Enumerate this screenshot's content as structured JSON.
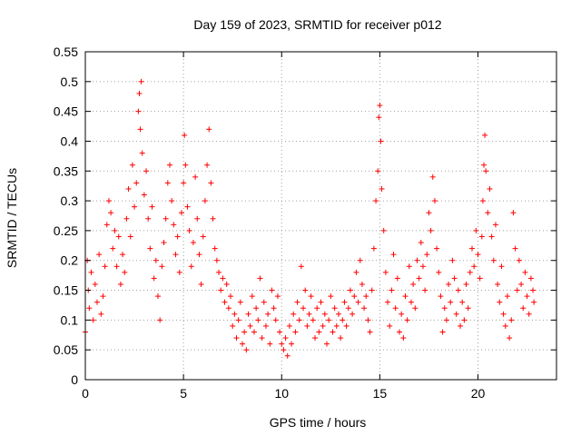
{
  "chart_data": {
    "type": "scatter",
    "title": "Day 159 of 2023, SRMTID for receiver p012",
    "xlabel": "GPS time / hours",
    "ylabel": "SRMTID / TECUs",
    "xlim": [
      0,
      24
    ],
    "ylim": [
      0,
      0.55
    ],
    "xticks": [
      0,
      5,
      10,
      15,
      20
    ],
    "yticks": [
      0,
      0.05,
      0.1,
      0.15,
      0.2,
      0.25,
      0.3,
      0.35,
      0.4,
      0.45,
      0.5,
      0.55
    ],
    "xtick_labels": [
      "0",
      "5",
      "10",
      "15",
      "20"
    ],
    "ytick_labels": [
      "0",
      "0.05",
      "0.1",
      "0.15",
      "0.2",
      "0.25",
      "0.3",
      "0.35",
      "0.4",
      "0.45",
      "0.5",
      "0.55"
    ],
    "grid": true,
    "marker": "+",
    "marker_color": "#ff0000",
    "series": [
      {
        "name": "SRMTID",
        "points": [
          [
            0.0,
            0.08
          ],
          [
            0.1,
            0.2
          ],
          [
            0.15,
            0.15
          ],
          [
            0.2,
            0.12
          ],
          [
            0.3,
            0.18
          ],
          [
            0.4,
            0.1
          ],
          [
            0.5,
            0.16
          ],
          [
            0.6,
            0.13
          ],
          [
            0.7,
            0.21
          ],
          [
            0.8,
            0.11
          ],
          [
            0.9,
            0.14
          ],
          [
            1.0,
            0.19
          ],
          [
            1.1,
            0.26
          ],
          [
            1.2,
            0.3
          ],
          [
            1.3,
            0.28
          ],
          [
            1.4,
            0.22
          ],
          [
            1.5,
            0.25
          ],
          [
            1.6,
            0.19
          ],
          [
            1.7,
            0.24
          ],
          [
            1.8,
            0.16
          ],
          [
            1.9,
            0.21
          ],
          [
            2.0,
            0.18
          ],
          [
            2.1,
            0.27
          ],
          [
            2.2,
            0.32
          ],
          [
            2.3,
            0.24
          ],
          [
            2.4,
            0.36
          ],
          [
            2.5,
            0.29
          ],
          [
            2.6,
            0.33
          ],
          [
            2.7,
            0.45
          ],
          [
            2.75,
            0.48
          ],
          [
            2.8,
            0.42
          ],
          [
            2.85,
            0.5
          ],
          [
            2.9,
            0.38
          ],
          [
            3.0,
            0.31
          ],
          [
            3.1,
            0.35
          ],
          [
            3.2,
            0.27
          ],
          [
            3.3,
            0.22
          ],
          [
            3.4,
            0.29
          ],
          [
            3.5,
            0.17
          ],
          [
            3.6,
            0.2
          ],
          [
            3.7,
            0.14
          ],
          [
            3.8,
            0.1
          ],
          [
            3.9,
            0.19
          ],
          [
            4.0,
            0.23
          ],
          [
            4.1,
            0.27
          ],
          [
            4.2,
            0.33
          ],
          [
            4.3,
            0.36
          ],
          [
            4.4,
            0.3
          ],
          [
            4.5,
            0.26
          ],
          [
            4.6,
            0.21
          ],
          [
            4.7,
            0.24
          ],
          [
            4.8,
            0.18
          ],
          [
            4.9,
            0.28
          ],
          [
            5.0,
            0.33
          ],
          [
            5.05,
            0.41
          ],
          [
            5.1,
            0.36
          ],
          [
            5.2,
            0.29
          ],
          [
            5.3,
            0.25
          ],
          [
            5.4,
            0.19
          ],
          [
            5.5,
            0.23
          ],
          [
            5.6,
            0.34
          ],
          [
            5.7,
            0.27
          ],
          [
            5.8,
            0.21
          ],
          [
            5.9,
            0.16
          ],
          [
            6.0,
            0.24
          ],
          [
            6.1,
            0.3
          ],
          [
            6.2,
            0.36
          ],
          [
            6.3,
            0.42
          ],
          [
            6.4,
            0.33
          ],
          [
            6.5,
            0.27
          ],
          [
            6.6,
            0.22
          ],
          [
            6.7,
            0.2
          ],
          [
            6.8,
            0.18
          ],
          [
            6.9,
            0.15
          ],
          [
            7.0,
            0.17
          ],
          [
            7.1,
            0.13
          ],
          [
            7.2,
            0.16
          ],
          [
            7.3,
            0.12
          ],
          [
            7.4,
            0.14
          ],
          [
            7.5,
            0.09
          ],
          [
            7.6,
            0.11
          ],
          [
            7.7,
            0.07
          ],
          [
            7.8,
            0.1
          ],
          [
            7.9,
            0.13
          ],
          [
            8.0,
            0.06
          ],
          [
            8.1,
            0.08
          ],
          [
            8.2,
            0.05
          ],
          [
            8.3,
            0.11
          ],
          [
            8.4,
            0.09
          ],
          [
            8.5,
            0.14
          ],
          [
            8.6,
            0.08
          ],
          [
            8.7,
            0.12
          ],
          [
            8.8,
            0.1
          ],
          [
            8.9,
            0.17
          ],
          [
            9.0,
            0.07
          ],
          [
            9.1,
            0.13
          ],
          [
            9.2,
            0.09
          ],
          [
            9.3,
            0.11
          ],
          [
            9.4,
            0.06
          ],
          [
            9.5,
            0.15
          ],
          [
            9.6,
            0.12
          ],
          [
            9.7,
            0.1
          ],
          [
            9.8,
            0.14
          ],
          [
            9.9,
            0.08
          ],
          [
            10.0,
            0.06
          ],
          [
            10.1,
            0.05
          ],
          [
            10.2,
            0.07
          ],
          [
            10.3,
            0.04
          ],
          [
            10.4,
            0.09
          ],
          [
            10.5,
            0.06
          ],
          [
            10.6,
            0.11
          ],
          [
            10.7,
            0.08
          ],
          [
            10.8,
            0.13
          ],
          [
            10.9,
            0.1
          ],
          [
            11.0,
            0.19
          ],
          [
            11.1,
            0.12
          ],
          [
            11.2,
            0.15
          ],
          [
            11.3,
            0.09
          ],
          [
            11.4,
            0.11
          ],
          [
            11.5,
            0.14
          ],
          [
            11.6,
            0.1
          ],
          [
            11.7,
            0.07
          ],
          [
            11.8,
            0.12
          ],
          [
            11.9,
            0.08
          ],
          [
            12.0,
            0.13
          ],
          [
            12.1,
            0.09
          ],
          [
            12.2,
            0.11
          ],
          [
            12.3,
            0.06
          ],
          [
            12.4,
            0.1
          ],
          [
            12.5,
            0.14
          ],
          [
            12.6,
            0.08
          ],
          [
            12.7,
            0.12
          ],
          [
            12.8,
            0.09
          ],
          [
            12.9,
            0.11
          ],
          [
            13.0,
            0.07
          ],
          [
            13.1,
            0.1
          ],
          [
            13.2,
            0.13
          ],
          [
            13.3,
            0.09
          ],
          [
            13.4,
            0.12
          ],
          [
            13.5,
            0.15
          ],
          [
            13.6,
            0.11
          ],
          [
            13.7,
            0.14
          ],
          [
            13.8,
            0.18
          ],
          [
            13.9,
            0.13
          ],
          [
            14.0,
            0.2
          ],
          [
            14.1,
            0.16
          ],
          [
            14.2,
            0.12
          ],
          [
            14.3,
            0.14
          ],
          [
            14.4,
            0.1
          ],
          [
            14.5,
            0.08
          ],
          [
            14.6,
            0.15
          ],
          [
            14.7,
            0.22
          ],
          [
            14.8,
            0.3
          ],
          [
            14.9,
            0.35
          ],
          [
            14.95,
            0.44
          ],
          [
            15.0,
            0.46
          ],
          [
            15.05,
            0.4
          ],
          [
            15.1,
            0.32
          ],
          [
            15.2,
            0.25
          ],
          [
            15.3,
            0.18
          ],
          [
            15.4,
            0.13
          ],
          [
            15.5,
            0.09
          ],
          [
            15.6,
            0.15
          ],
          [
            15.7,
            0.21
          ],
          [
            15.8,
            0.12
          ],
          [
            15.9,
            0.17
          ],
          [
            16.0,
            0.08
          ],
          [
            16.1,
            0.11
          ],
          [
            16.2,
            0.07
          ],
          [
            16.3,
            0.14
          ],
          [
            16.4,
            0.1
          ],
          [
            16.5,
            0.19
          ],
          [
            16.6,
            0.13
          ],
          [
            16.7,
            0.16
          ],
          [
            16.8,
            0.12
          ],
          [
            16.9,
            0.2
          ],
          [
            17.0,
            0.17
          ],
          [
            17.1,
            0.23
          ],
          [
            17.2,
            0.19
          ],
          [
            17.3,
            0.15
          ],
          [
            17.4,
            0.21
          ],
          [
            17.5,
            0.28
          ],
          [
            17.6,
            0.25
          ],
          [
            17.7,
            0.34
          ],
          [
            17.8,
            0.3
          ],
          [
            17.9,
            0.22
          ],
          [
            18.0,
            0.18
          ],
          [
            18.1,
            0.14
          ],
          [
            18.2,
            0.08
          ],
          [
            18.3,
            0.12
          ],
          [
            18.4,
            0.1
          ],
          [
            18.5,
            0.16
          ],
          [
            18.6,
            0.13
          ],
          [
            18.7,
            0.2
          ],
          [
            18.8,
            0.17
          ],
          [
            18.9,
            0.11
          ],
          [
            19.0,
            0.15
          ],
          [
            19.1,
            0.09
          ],
          [
            19.2,
            0.13
          ],
          [
            19.3,
            0.1
          ],
          [
            19.4,
            0.16
          ],
          [
            19.5,
            0.12
          ],
          [
            19.6,
            0.18
          ],
          [
            19.7,
            0.22
          ],
          [
            19.8,
            0.19
          ],
          [
            19.9,
            0.25
          ],
          [
            20.0,
            0.21
          ],
          [
            20.1,
            0.17
          ],
          [
            20.2,
            0.24
          ],
          [
            20.25,
            0.3
          ],
          [
            20.3,
            0.36
          ],
          [
            20.35,
            0.41
          ],
          [
            20.4,
            0.35
          ],
          [
            20.5,
            0.28
          ],
          [
            20.6,
            0.32
          ],
          [
            20.7,
            0.24
          ],
          [
            20.8,
            0.2
          ],
          [
            20.9,
            0.26
          ],
          [
            21.0,
            0.16
          ],
          [
            21.1,
            0.13
          ],
          [
            21.2,
            0.19
          ],
          [
            21.3,
            0.11
          ],
          [
            21.4,
            0.09
          ],
          [
            21.5,
            0.14
          ],
          [
            21.6,
            0.07
          ],
          [
            21.7,
            0.1
          ],
          [
            21.8,
            0.28
          ],
          [
            21.9,
            0.22
          ],
          [
            22.0,
            0.15
          ],
          [
            22.1,
            0.2
          ],
          [
            22.2,
            0.16
          ],
          [
            22.3,
            0.12
          ],
          [
            22.4,
            0.18
          ],
          [
            22.5,
            0.14
          ],
          [
            22.6,
            0.11
          ],
          [
            22.7,
            0.17
          ],
          [
            22.8,
            0.15
          ],
          [
            22.85,
            0.13
          ]
        ]
      }
    ]
  }
}
